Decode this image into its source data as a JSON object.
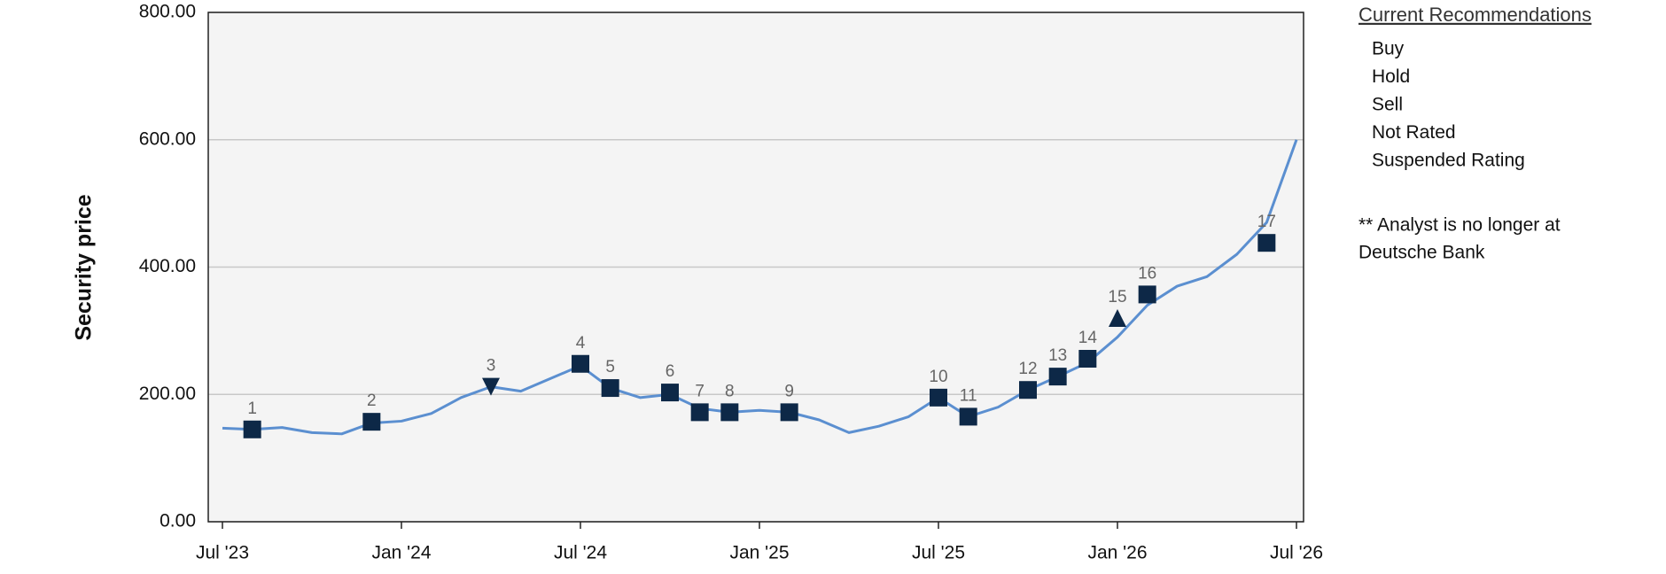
{
  "chart_data": {
    "type": "line",
    "y_label": "Security price",
    "x": [
      "2023-07",
      "2023-08",
      "2023-09",
      "2023-10",
      "2023-11",
      "2023-12",
      "2024-01",
      "2024-02",
      "2024-03",
      "2024-04",
      "2024-05",
      "2024-06",
      "2024-07",
      "2024-08",
      "2024-09",
      "2024-10",
      "2024-11",
      "2024-12",
      "2025-01",
      "2025-02",
      "2025-03",
      "2025-04",
      "2025-05",
      "2025-06",
      "2025-07",
      "2025-08",
      "2025-09",
      "2025-10",
      "2025-11",
      "2025-12",
      "2026-01",
      "2026-02",
      "2026-03",
      "2026-04",
      "2026-05",
      "2026-06",
      "2026-07"
    ],
    "series": [
      {
        "color": "#5b8fd0",
        "values": [
          147,
          145,
          148,
          140,
          138,
          155,
          158,
          170,
          195,
          212,
          205,
          225,
          245,
          210,
          195,
          200,
          178,
          172,
          175,
          172,
          160,
          140,
          150,
          165,
          195,
          165,
          180,
          207,
          228,
          250,
          290,
          340,
          370,
          385,
          420,
          470,
          600
        ]
      }
    ],
    "ratings": [
      {
        "label": "1",
        "x": "2023-08",
        "y": 145,
        "marker": "square"
      },
      {
        "label": "2",
        "x": "2023-12",
        "y": 157,
        "marker": "square"
      },
      {
        "label": "3",
        "x": "2024-04",
        "y": 212,
        "marker": "triangle-down"
      },
      {
        "label": "4",
        "x": "2024-07",
        "y": 248,
        "marker": "square"
      },
      {
        "label": "5",
        "x": "2024-08",
        "y": 210,
        "marker": "square"
      },
      {
        "label": "6",
        "x": "2024-10",
        "y": 203,
        "marker": "square"
      },
      {
        "label": "7",
        "x": "2024-11",
        "y": 172,
        "marker": "square"
      },
      {
        "label": "8",
        "x": "2024-12",
        "y": 172,
        "marker": "square"
      },
      {
        "label": "9",
        "x": "2025-02",
        "y": 172,
        "marker": "square"
      },
      {
        "label": "10",
        "x": "2025-07",
        "y": 195,
        "marker": "square"
      },
      {
        "label": "11",
        "x": "2025-08",
        "y": 165,
        "marker": "square"
      },
      {
        "label": "12",
        "x": "2025-10",
        "y": 207,
        "marker": "square"
      },
      {
        "label": "13",
        "x": "2025-11",
        "y": 228,
        "marker": "square"
      },
      {
        "label": "14",
        "x": "2025-12",
        "y": 256,
        "marker": "square"
      },
      {
        "label": "15",
        "x": "2026-01",
        "y": 320,
        "marker": "triangle-up"
      },
      {
        "label": "16",
        "x": "2026-02",
        "y": 357,
        "marker": "square"
      },
      {
        "label": "17",
        "x": "2026-06",
        "y": 438,
        "marker": "square"
      }
    ],
    "marker_color": "#0d2847",
    "ylim": [
      0,
      800
    ],
    "yticks": [
      {
        "value": 0,
        "label": "0.00"
      },
      {
        "value": 200,
        "label": "200.00"
      },
      {
        "value": 400,
        "label": "400.00"
      },
      {
        "value": 600,
        "label": "600.00"
      },
      {
        "value": 800,
        "label": "800.00"
      }
    ],
    "xticks": [
      {
        "value": "2023-07",
        "label": "Jul '23"
      },
      {
        "value": "2024-01",
        "label": "Jan '24"
      },
      {
        "value": "2024-07",
        "label": "Jul '24"
      },
      {
        "value": "2025-01",
        "label": "Jan '25"
      },
      {
        "value": "2025-07",
        "label": "Jul '25"
      },
      {
        "value": "2026-01",
        "label": "Jan '26"
      },
      {
        "value": "2026-07",
        "label": "Jul '26"
      }
    ],
    "grid": true,
    "legend": {
      "title": "Current Recommendations",
      "items": [
        "Buy",
        "Hold",
        "Sell",
        "Not Rated",
        "Suspended Rating"
      ]
    },
    "note": [
      "** Analyst is no longer at",
      "Deutsche Bank"
    ]
  }
}
